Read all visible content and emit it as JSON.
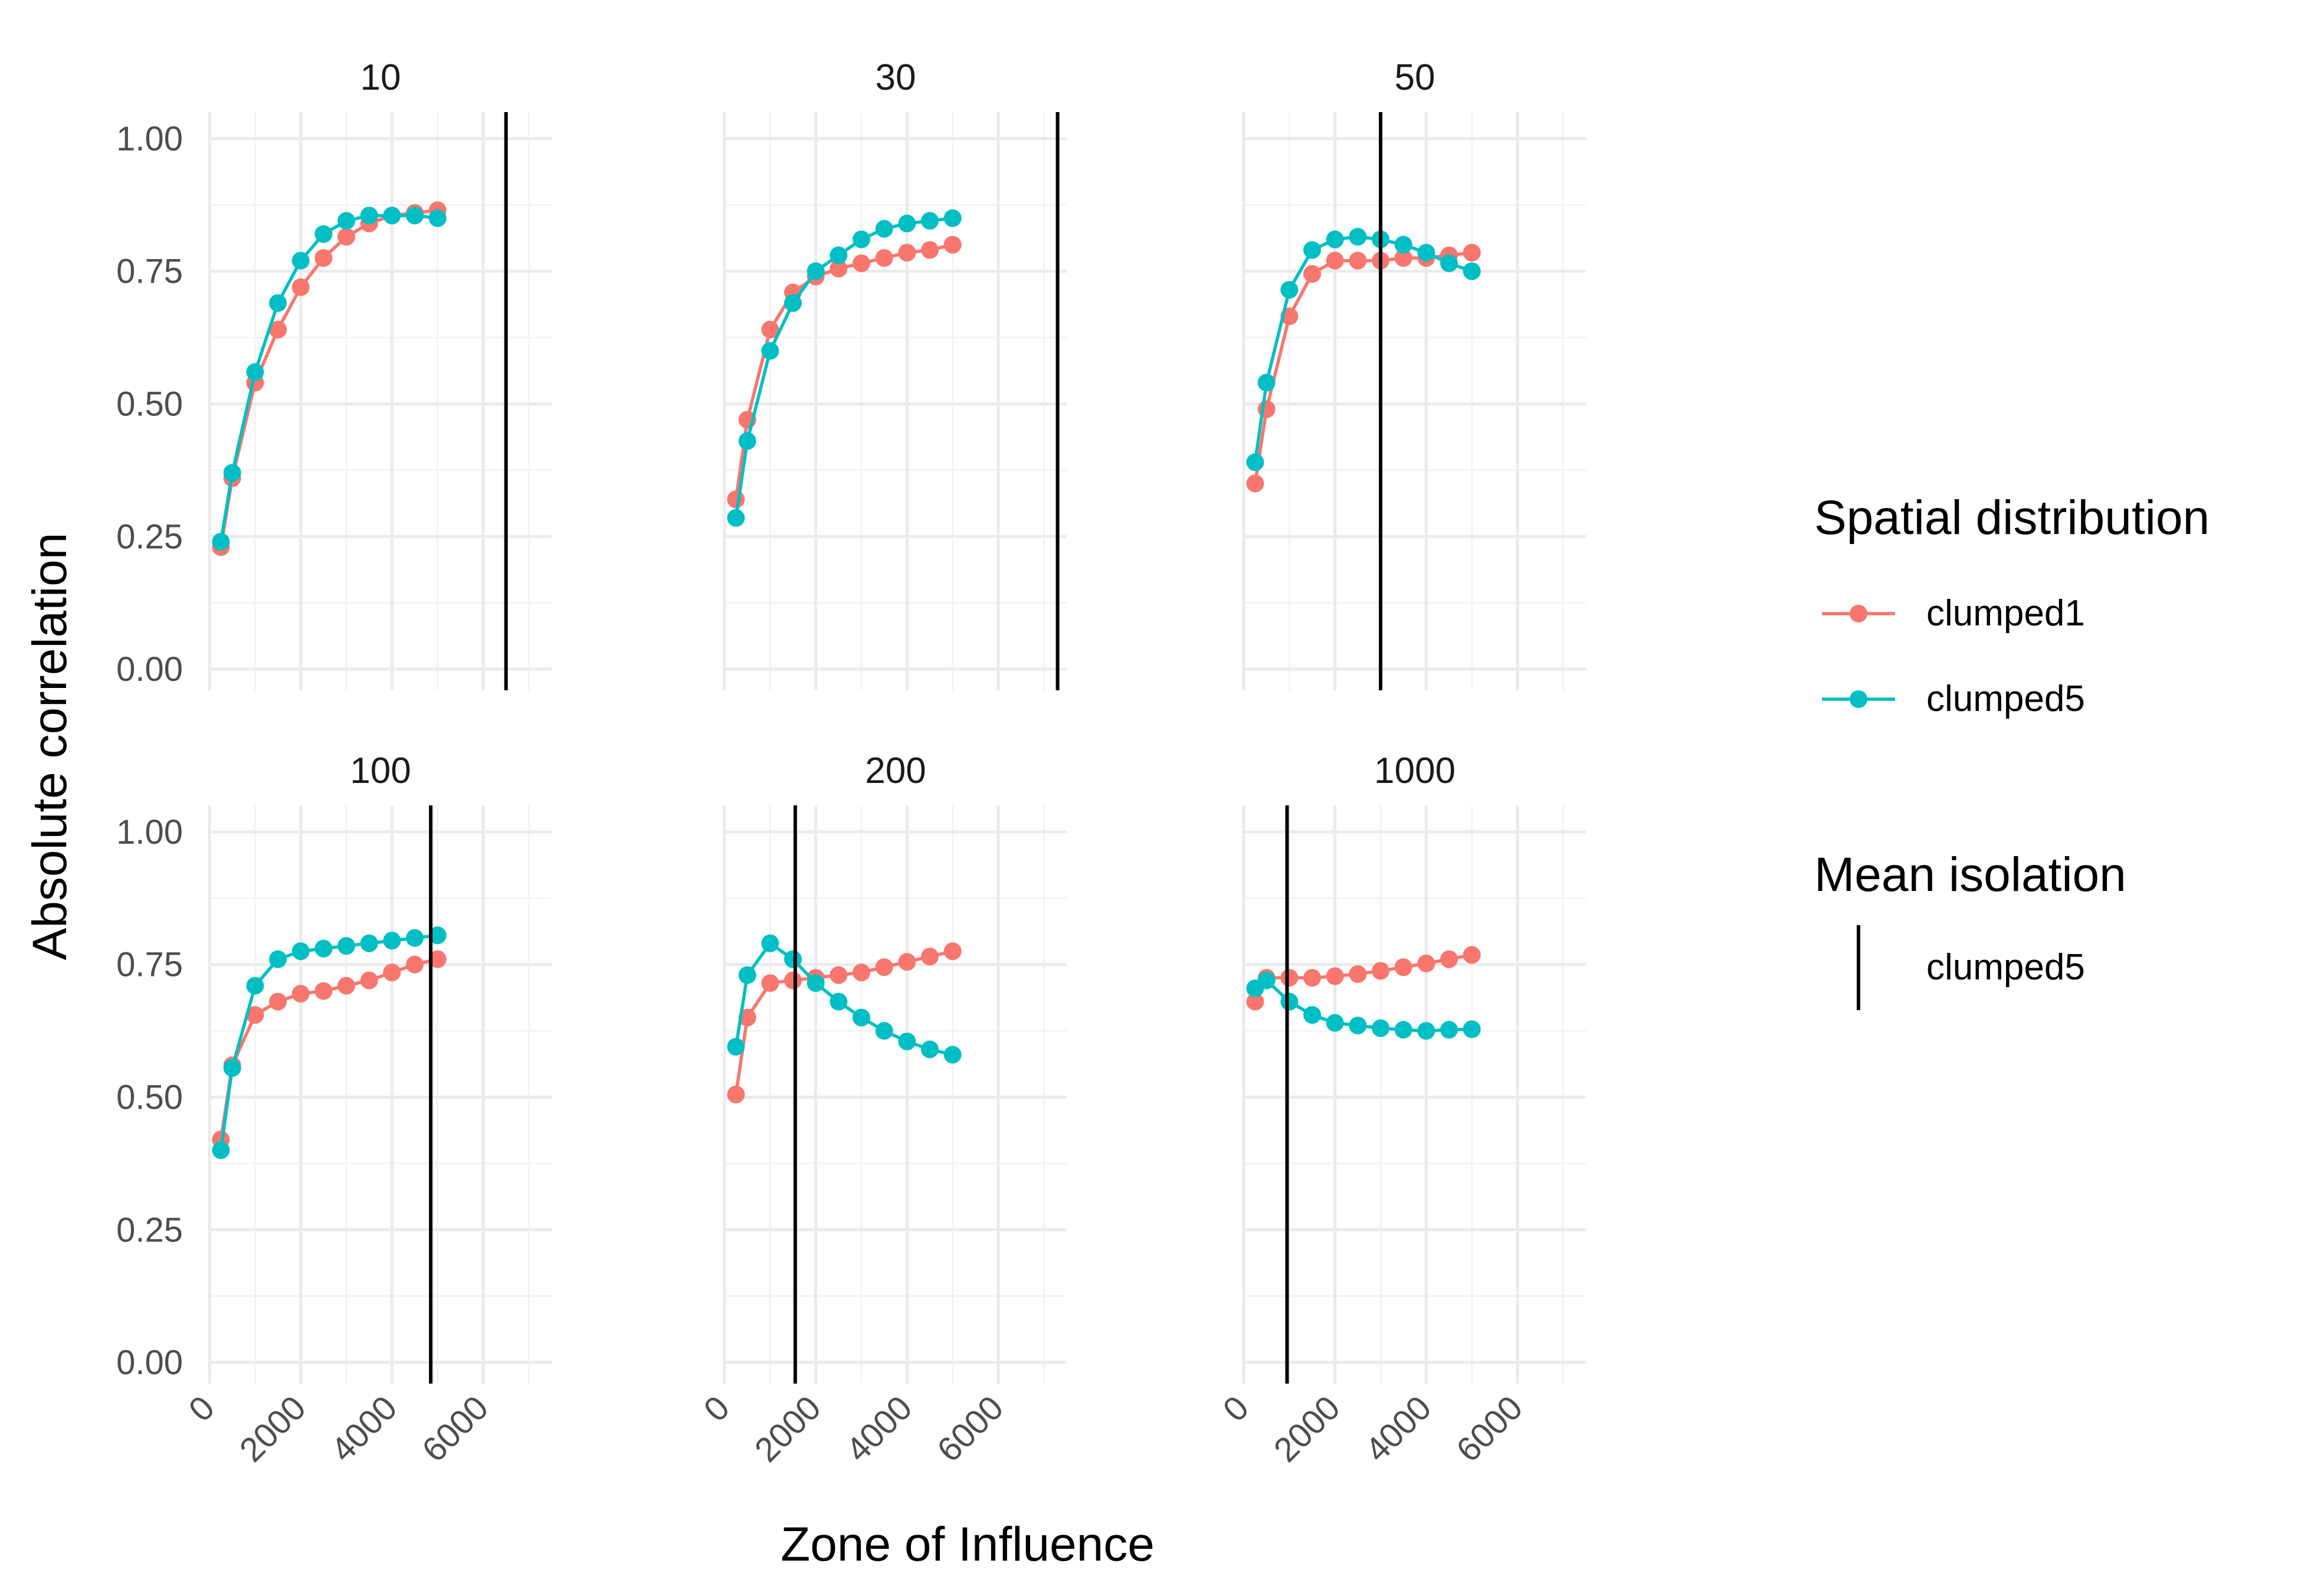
{
  "chart_data": {
    "type": "line",
    "xlabel": "Zone of Influence",
    "ylabel": "Absolute correlation",
    "xlim": [
      0,
      7500
    ],
    "ylim": [
      -0.04,
      1.05
    ],
    "x_ticks": [
      0,
      2000,
      4000,
      6000
    ],
    "x_tick_labels": [
      "0",
      "2000",
      "4000",
      "6000"
    ],
    "y_ticks": [
      0,
      0.25,
      0.5,
      0.75,
      1.0
    ],
    "y_tick_labels": [
      "0.00",
      "0.25",
      "0.50",
      "0.75",
      "1.00"
    ],
    "grid": true,
    "legend": {
      "placement": "right",
      "groups": [
        {
          "title": "Spatial distribution",
          "entries": [
            {
              "label": "clumped1",
              "color": "#F8766D",
              "kind": "line-point"
            },
            {
              "label": "clumped5",
              "color": "#00BFC4",
              "kind": "line-point"
            }
          ]
        },
        {
          "title": "Mean isolation",
          "entries": [
            {
              "label": "clumped5",
              "color": "#000000",
              "kind": "vline"
            }
          ]
        }
      ]
    },
    "x": [
      250,
      500,
      1000,
      1500,
      2000,
      2500,
      3000,
      3500,
      4000,
      4500,
      5000
    ],
    "panels": [
      {
        "title": "10",
        "mean_isolation": 6500,
        "series": [
          {
            "name": "clumped1",
            "color": "#F8766D",
            "values": [
              0.23,
              0.36,
              0.54,
              0.64,
              0.72,
              0.775,
              0.815,
              0.84,
              0.855,
              0.86,
              0.865
            ]
          },
          {
            "name": "clumped5",
            "color": "#00BFC4",
            "values": [
              0.24,
              0.37,
              0.56,
              0.69,
              0.77,
              0.82,
              0.845,
              0.855,
              0.855,
              0.855,
              0.85
            ]
          }
        ]
      },
      {
        "title": "30",
        "mean_isolation": 7300,
        "series": [
          {
            "name": "clumped1",
            "color": "#F8766D",
            "values": [
              0.32,
              0.47,
              0.64,
              0.71,
              0.74,
              0.755,
              0.765,
              0.775,
              0.785,
              0.79,
              0.8
            ]
          },
          {
            "name": "clumped5",
            "color": "#00BFC4",
            "values": [
              0.285,
              0.43,
              0.6,
              0.69,
              0.75,
              0.78,
              0.81,
              0.83,
              0.84,
              0.845,
              0.85
            ]
          }
        ]
      },
      {
        "title": "50",
        "mean_isolation": 3000,
        "series": [
          {
            "name": "clumped1",
            "color": "#F8766D",
            "values": [
              0.35,
              0.49,
              0.665,
              0.745,
              0.77,
              0.77,
              0.77,
              0.775,
              0.775,
              0.78,
              0.785
            ]
          },
          {
            "name": "clumped5",
            "color": "#00BFC4",
            "values": [
              0.39,
              0.54,
              0.715,
              0.79,
              0.81,
              0.815,
              0.81,
              0.8,
              0.785,
              0.765,
              0.75
            ]
          }
        ]
      },
      {
        "title": "100",
        "mean_isolation": 4850,
        "series": [
          {
            "name": "clumped1",
            "color": "#F8766D",
            "values": [
              0.42,
              0.56,
              0.655,
              0.68,
              0.695,
              0.7,
              0.71,
              0.72,
              0.735,
              0.75,
              0.76
            ]
          },
          {
            "name": "clumped5",
            "color": "#00BFC4",
            "values": [
              0.4,
              0.555,
              0.71,
              0.76,
              0.775,
              0.78,
              0.785,
              0.79,
              0.795,
              0.8,
              0.805
            ]
          }
        ]
      },
      {
        "title": "200",
        "mean_isolation": 1550,
        "series": [
          {
            "name": "clumped1",
            "color": "#F8766D",
            "values": [
              0.505,
              0.65,
              0.715,
              0.72,
              0.725,
              0.73,
              0.735,
              0.745,
              0.755,
              0.765,
              0.775
            ]
          },
          {
            "name": "clumped5",
            "color": "#00BFC4",
            "values": [
              0.595,
              0.73,
              0.79,
              0.76,
              0.715,
              0.68,
              0.65,
              0.625,
              0.605,
              0.59,
              0.58
            ]
          }
        ]
      },
      {
        "title": "1000",
        "mean_isolation": 950,
        "series": [
          {
            "name": "clumped1",
            "color": "#F8766D",
            "values": [
              0.68,
              0.725,
              0.725,
              0.725,
              0.728,
              0.732,
              0.738,
              0.745,
              0.752,
              0.76,
              0.768
            ]
          },
          {
            "name": "clumped5",
            "color": "#00BFC4",
            "values": [
              0.705,
              0.72,
              0.68,
              0.655,
              0.64,
              0.635,
              0.63,
              0.627,
              0.625,
              0.627,
              0.628
            ]
          }
        ]
      }
    ]
  }
}
